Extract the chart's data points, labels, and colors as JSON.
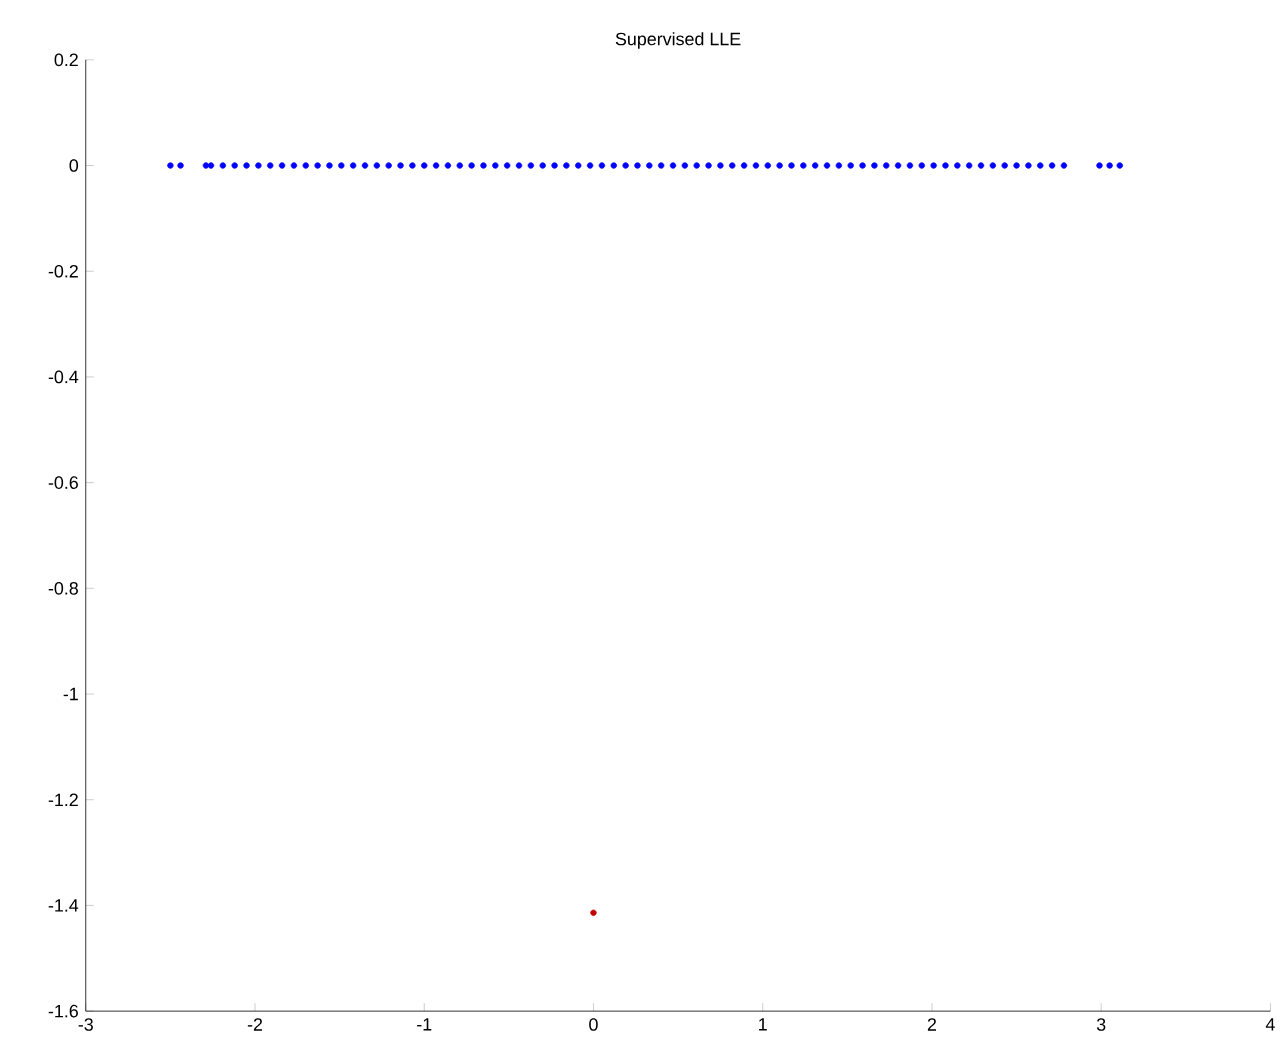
{
  "chart_data": {
    "type": "scatter",
    "title": "Supervised LLE",
    "series": [
      {
        "color": "#0000ff",
        "x": [
          -2.5,
          -2.44,
          -2.29,
          -2.26,
          -2.19,
          -2.12,
          -2.05,
          -1.98,
          -1.91,
          -1.84,
          -1.77,
          -1.7,
          -1.63,
          -1.56,
          -1.49,
          -1.42,
          -1.35,
          -1.28,
          -1.21,
          -1.14,
          -1.07,
          -1.0,
          -0.93,
          -0.86,
          -0.79,
          -0.72,
          -0.65,
          -0.58,
          -0.51,
          -0.44,
          -0.37,
          -0.3,
          -0.23,
          -0.16,
          -0.09,
          -0.02,
          0.05,
          0.12,
          0.19,
          0.26,
          0.33,
          0.4,
          0.47,
          0.54,
          0.61,
          0.68,
          0.75,
          0.82,
          0.89,
          0.96,
          1.03,
          1.1,
          1.17,
          1.24,
          1.31,
          1.38,
          1.45,
          1.52,
          1.59,
          1.66,
          1.73,
          1.8,
          1.87,
          1.94,
          2.01,
          2.08,
          2.15,
          2.22,
          2.29,
          2.36,
          2.43,
          2.5,
          2.57,
          2.64,
          2.71,
          2.78,
          2.99,
          3.05,
          3.11
        ],
        "values": [
          0,
          0,
          0,
          0,
          0,
          0,
          0,
          0,
          0,
          0,
          0,
          0,
          0,
          0,
          0,
          0,
          0,
          0,
          0,
          0,
          0,
          0,
          0,
          0,
          0,
          0,
          0,
          0,
          0,
          0,
          0,
          0,
          0,
          0,
          0,
          0,
          0,
          0,
          0,
          0,
          0,
          0,
          0,
          0,
          0,
          0,
          0,
          0,
          0,
          0,
          0,
          0,
          0,
          0,
          0,
          0,
          0,
          0,
          0,
          0,
          0,
          0,
          0,
          0,
          0,
          0,
          0,
          0,
          0,
          0,
          0,
          0,
          0,
          0,
          0,
          0,
          0,
          0,
          0
        ]
      },
      {
        "color": "#c00000",
        "x": [
          0
        ],
        "values": [
          -1.414
        ]
      }
    ],
    "xlim": [
      -3,
      4
    ],
    "ylim": [
      -1.6,
      0.2
    ],
    "xticks": [
      -3,
      -2,
      -1,
      0,
      1,
      2,
      3,
      4
    ],
    "yticks": [
      -1.6,
      -1.4,
      -1.2,
      -1,
      -0.8,
      -0.6,
      -0.4,
      -0.2,
      0,
      0.2
    ],
    "grid": false,
    "marker": "circle"
  }
}
